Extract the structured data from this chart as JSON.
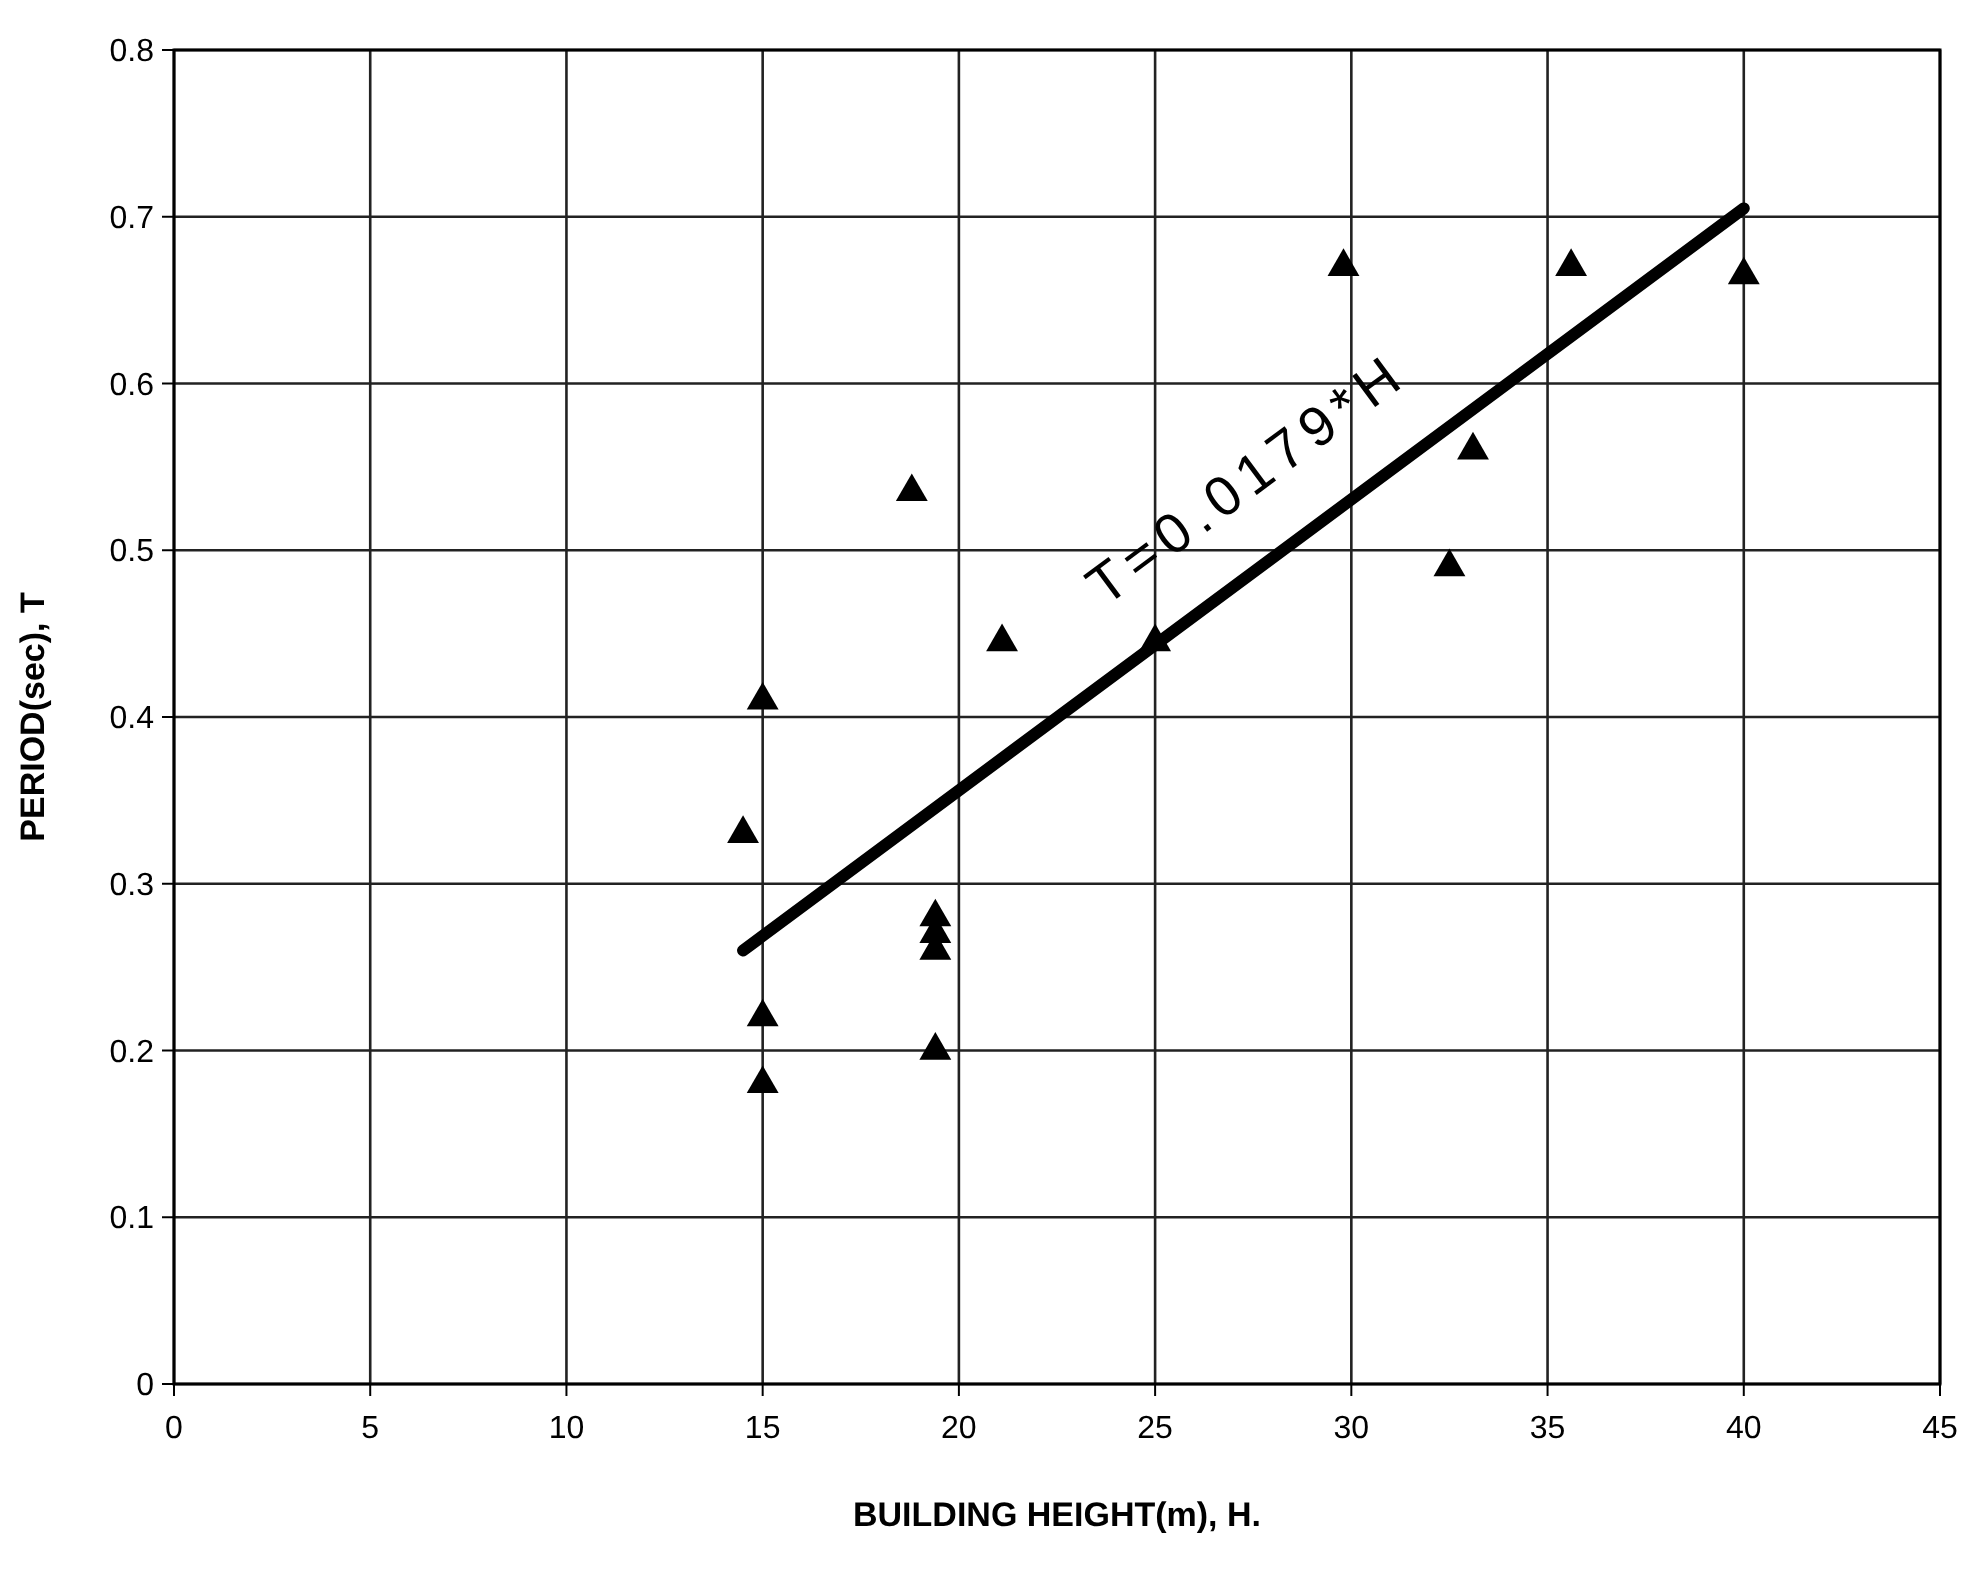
{
  "chart_data": {
    "type": "scatter",
    "xlabel": "BUILDING  HEIGHT(m), H.",
    "ylabel": "PERIOD(sec), T",
    "xlim": [
      0,
      45
    ],
    "xticks": [
      0,
      5,
      10,
      15,
      20,
      25,
      30,
      35,
      40,
      45
    ],
    "ylim": [
      0,
      0.8
    ],
    "yticks": [
      {
        "value": 0,
        "label": "0"
      },
      {
        "value": 0.1,
        "label": "0.1"
      },
      {
        "value": 0.2,
        "label": "0.2"
      },
      {
        "value": 0.3,
        "label": "0.3"
      },
      {
        "value": 0.4,
        "label": "0.4"
      },
      {
        "value": 0.5,
        "label": "0.5"
      },
      {
        "value": 0.6,
        "label": "0.6"
      },
      {
        "value": 0.7,
        "label": "0.7"
      },
      {
        "value": 0.8,
        "label": "0.8"
      }
    ],
    "grid": true,
    "marker": "triangle",
    "annotations": [
      "T=0.0179*H"
    ],
    "series": [
      {
        "color": "#000000",
        "x": [
          14.5,
          15,
          15,
          15,
          18.8,
          19.4,
          19.4,
          19.4,
          19.4,
          21.1,
          25,
          29.8,
          32.5,
          33.1,
          35.6,
          40
        ],
        "values": [
          0.33,
          0.41,
          0.22,
          0.18,
          0.535,
          0.28,
          0.27,
          0.26,
          0.2,
          0.445,
          0.445,
          0.67,
          0.49,
          0.56,
          0.67,
          0.665
        ]
      },
      {
        "type": "line",
        "color": "#000000",
        "marker": "none",
        "line_style": "solid",
        "x": [
          14.5,
          40
        ],
        "values": [
          0.26,
          0.705
        ]
      }
    ]
  }
}
